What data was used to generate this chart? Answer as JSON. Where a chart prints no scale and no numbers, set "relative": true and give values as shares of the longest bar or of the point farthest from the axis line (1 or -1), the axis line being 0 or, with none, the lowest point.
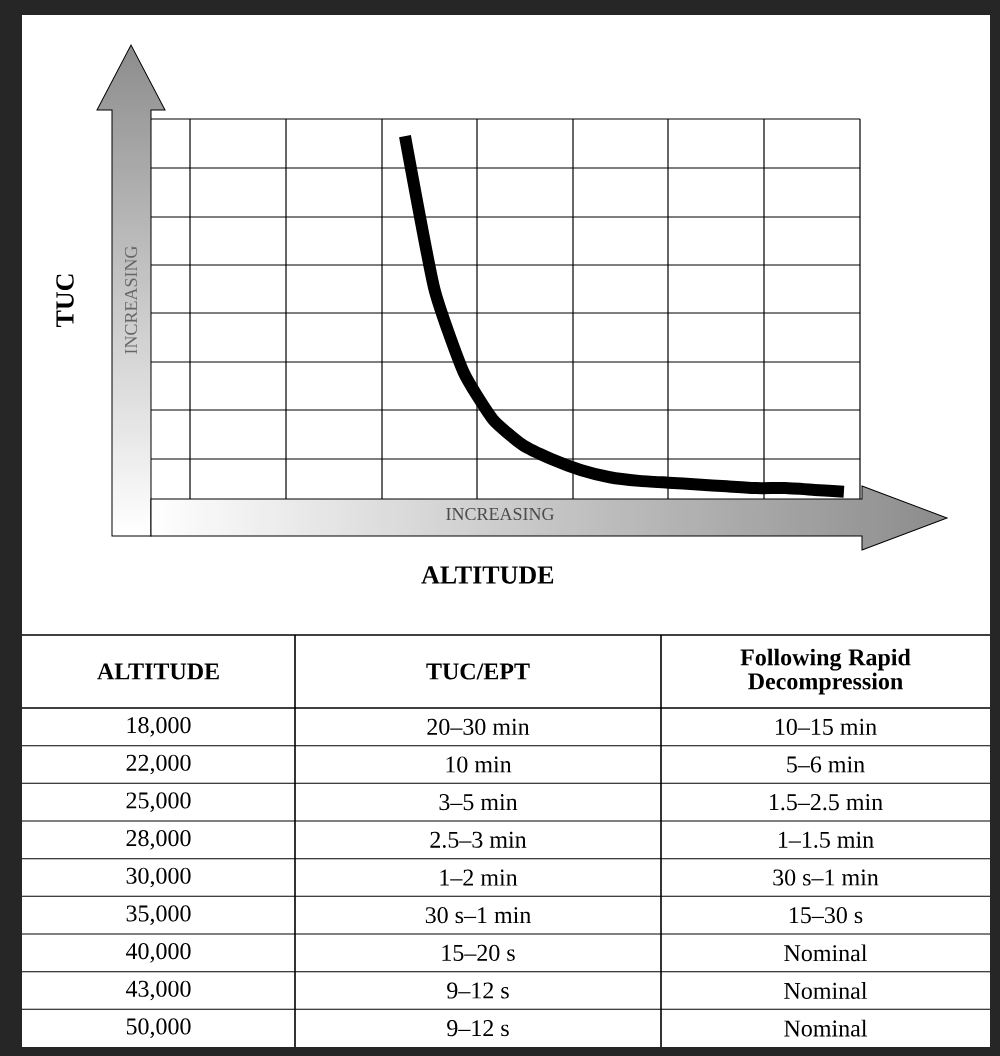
{
  "chart_data": {
    "type": "line",
    "relative": true,
    "xlabel": "ALTITUDE",
    "grid": true,
    "color": "#000000",
    "categories": [
      null,
      null,
      null,
      null,
      null,
      null,
      null,
      null,
      null,
      null,
      null,
      null,
      null,
      null,
      null,
      null
    ],
    "values": [
      1,
      0.58,
      0.35,
      0.22,
      0.15,
      0.11,
      0.08,
      0.06,
      0.05,
      0.045,
      0.04,
      0.035,
      0.03,
      0.03,
      0.025,
      0.02
    ],
    "annotations": [
      "INCREASING",
      "INCREASING",
      "TUC",
      "ALTITUDE",
      "TUC/EPT",
      "Following Rapid Decompression",
      "18,000",
      "20–30 min",
      "10–15 min",
      "22,000",
      "10 min",
      "5–6 min",
      "25,000",
      "3–5 min",
      "1.5–2.5 min",
      "28,000",
      "2.5–3 min",
      "1–1.5 min",
      "30,000",
      "1–2 min",
      "30 s–1 min",
      "35,000",
      "30 s–1 min",
      "15–30 s",
      "40,000",
      "15–20 s",
      "Nominal",
      "43,000",
      "9–12 s",
      "Nominal",
      "50,000",
      "9–12 s",
      "Nominal"
    ]
  }
}
